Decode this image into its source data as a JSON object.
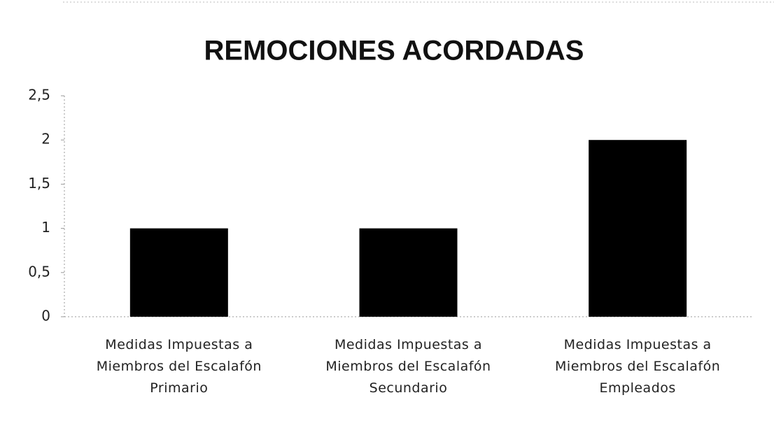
{
  "chart_data": {
    "type": "bar",
    "title": "REMOCIONES ACORDADAS",
    "categories": [
      "Medidas Impuestas a Miembros del Escalafón Primario",
      "Medidas Impuestas a Miembros del Escalafón Secundario",
      "Medidas Impuestas a Miembros del Escalafón Empleados"
    ],
    "values": [
      1,
      1,
      2
    ],
    "color": "#000000",
    "ylim": [
      0,
      2.5
    ],
    "yticks": [
      0,
      {
        "value": 0.5,
        "label": "0,5"
      },
      1,
      {
        "value": 1.5,
        "label": "1,5"
      },
      2,
      {
        "value": 2.5,
        "label": "2,5"
      }
    ],
    "grid": false
  }
}
